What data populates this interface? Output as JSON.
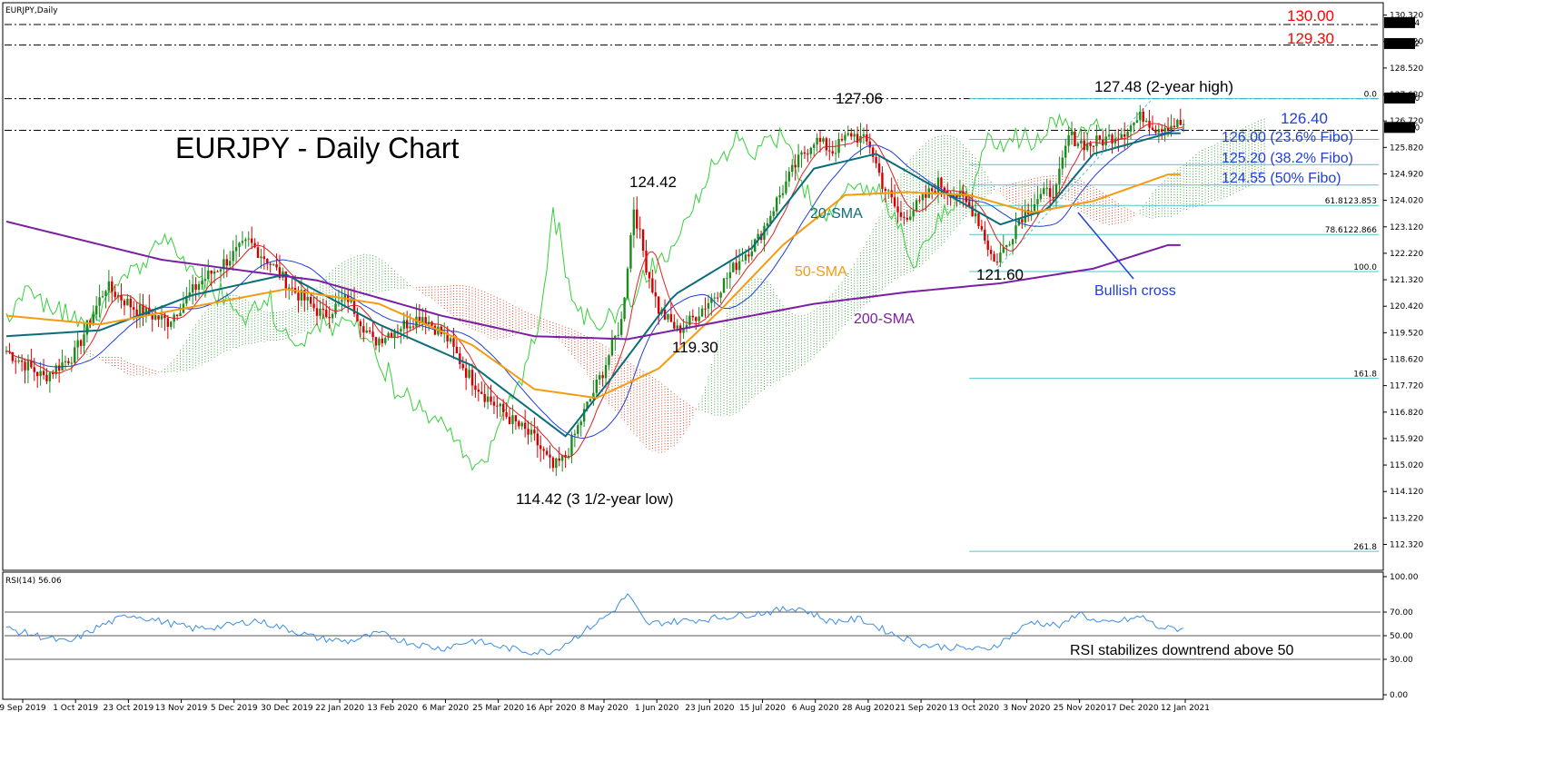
{
  "window": {
    "symbol_label": "EURJPY,Daily",
    "rsi_label": "RSI(14) 56.06"
  },
  "colors": {
    "bull_candle": "#1d8a1d",
    "bear_candle": "#d40000",
    "sma20": "#0a6e7a",
    "sma50": "#f39c12",
    "sma200": "#7b1fa2",
    "tenkan": "#e02020",
    "kijun": "#1f3fd6",
    "chikou": "#35d03a",
    "cloud_bull": "#3aa03a",
    "cloud_bear": "#d44020",
    "fibo": "#4ec6cf",
    "rsi_line": "#3a8ee6",
    "level_red": "#ff0000",
    "level_blue": "#1f3fd6"
  },
  "chart_data": {
    "type": "candlestick",
    "title": "EURJPY - Daily Chart",
    "x_ticks": [
      "9 Sep 2019",
      "1 Oct 2019",
      "23 Oct 2019",
      "13 Nov 2019",
      "5 Dec 2019",
      "30 Dec 2019",
      "22 Jan 2020",
      "13 Feb 2020",
      "6 Mar 2020",
      "25 Mar 2020",
      "16 Apr 2020",
      "8 May 2020",
      "1 Jun 2020",
      "23 Jun 2020",
      "15 Jul 2020",
      "6 Aug 2020",
      "28 Aug 2020",
      "21 Sep 2020",
      "13 Oct 2020",
      "3 Nov 2020",
      "25 Nov 2020",
      "17 Dec 2020",
      "12 Jan 2021"
    ],
    "price_axis": {
      "ylim": [
        111.44,
        130.74
      ],
      "ticks": [
        "130.320",
        "129.420",
        "128.520",
        "127.620",
        "126.720",
        "125.820",
        "124.920",
        "124.020",
        "123.120",
        "122.220",
        "121.320",
        "120.420",
        "119.520",
        "118.620",
        "117.720",
        "116.820",
        "115.920",
        "115.020",
        "114.120",
        "113.220",
        "112.320"
      ],
      "current_price_labels": [
        "130.064",
        "129.352",
        "127.500",
        "126.500"
      ]
    },
    "close_path": [
      [
        0,
        118.9
      ],
      [
        12,
        118.0
      ],
      [
        22,
        118.8
      ],
      [
        32,
        121.1
      ],
      [
        42,
        120.3
      ],
      [
        52,
        119.9
      ],
      [
        62,
        121.2
      ],
      [
        70,
        121.9
      ],
      [
        78,
        122.6
      ],
      [
        84,
        122.0
      ],
      [
        92,
        121.0
      ],
      [
        102,
        120.1
      ],
      [
        110,
        120.7
      ],
      [
        118,
        119.2
      ],
      [
        126,
        119.7
      ],
      [
        134,
        120.1
      ],
      [
        142,
        119.3
      ],
      [
        148,
        118.2
      ],
      [
        154,
        117.4
      ],
      [
        162,
        116.6
      ],
      [
        170,
        115.9
      ],
      [
        176,
        114.9
      ],
      [
        180,
        115.3
      ],
      [
        186,
        116.8
      ],
      [
        192,
        118.2
      ],
      [
        198,
        119.9
      ],
      [
        202,
        123.8
      ],
      [
        206,
        121.8
      ],
      [
        210,
        120.3
      ],
      [
        216,
        119.6
      ],
      [
        220,
        119.9
      ],
      [
        228,
        120.8
      ],
      [
        236,
        122.0
      ],
      [
        242,
        122.7
      ],
      [
        248,
        124.0
      ],
      [
        254,
        125.2
      ],
      [
        260,
        126.1
      ],
      [
        266,
        125.7
      ],
      [
        272,
        126.3
      ],
      [
        278,
        125.9
      ],
      [
        282,
        124.6
      ],
      [
        288,
        123.4
      ],
      [
        294,
        123.9
      ],
      [
        300,
        124.6
      ],
      [
        306,
        124.2
      ],
      [
        312,
        123.6
      ],
      [
        318,
        121.9
      ],
      [
        322,
        122.5
      ],
      [
        326,
        123.4
      ],
      [
        332,
        124.1
      ],
      [
        338,
        124.4
      ],
      [
        342,
        126.2
      ],
      [
        348,
        125.9
      ],
      [
        354,
        126.1
      ],
      [
        360,
        126.4
      ],
      [
        366,
        126.9
      ],
      [
        370,
        126.5
      ],
      [
        374,
        126.6
      ]
    ],
    "series": [
      {
        "name": "20-SMA",
        "values": [
          [
            0,
            119.4
          ],
          [
            30,
            119.6
          ],
          [
            60,
            120.8
          ],
          [
            90,
            121.5
          ],
          [
            120,
            119.8
          ],
          [
            150,
            118.4
          ],
          [
            180,
            116.0
          ],
          [
            195,
            118.0
          ],
          [
            215,
            120.8
          ],
          [
            240,
            122.4
          ],
          [
            260,
            125.1
          ],
          [
            280,
            125.6
          ],
          [
            300,
            124.4
          ],
          [
            320,
            123.2
          ],
          [
            335,
            123.7
          ],
          [
            350,
            125.6
          ],
          [
            374,
            126.3
          ]
        ]
      },
      {
        "name": "50-SMA",
        "values": [
          [
            0,
            120.1
          ],
          [
            30,
            119.8
          ],
          [
            60,
            120.4
          ],
          [
            90,
            121.0
          ],
          [
            120,
            120.5
          ],
          [
            150,
            119.1
          ],
          [
            170,
            117.6
          ],
          [
            190,
            117.3
          ],
          [
            210,
            118.3
          ],
          [
            230,
            120.3
          ],
          [
            250,
            122.5
          ],
          [
            270,
            124.2
          ],
          [
            290,
            124.3
          ],
          [
            310,
            124.2
          ],
          [
            330,
            123.6
          ],
          [
            350,
            124.0
          ],
          [
            374,
            124.9
          ]
        ]
      },
      {
        "name": "200-SMA",
        "values": [
          [
            0,
            123.3
          ],
          [
            50,
            122.0
          ],
          [
            100,
            121.3
          ],
          [
            140,
            120.1
          ],
          [
            170,
            119.4
          ],
          [
            200,
            119.3
          ],
          [
            230,
            119.9
          ],
          [
            260,
            120.5
          ],
          [
            290,
            120.9
          ],
          [
            320,
            121.2
          ],
          [
            350,
            121.7
          ],
          [
            374,
            122.5
          ]
        ]
      }
    ],
    "levels": [
      {
        "value": 130.0,
        "label": "130.00"
      },
      {
        "value": 129.3,
        "label": "129.30"
      },
      {
        "value": 127.48,
        "label": ""
      },
      {
        "value": 126.4,
        "label": "126.40"
      }
    ],
    "fibonacci": {
      "low": 121.6,
      "high": 127.48,
      "levels": [
        {
          "ratio": 0.0,
          "label": "0.0"
        },
        {
          "ratio": 0.236,
          "label": "126.00 (23.6% Fibo)"
        },
        {
          "ratio": 0.382,
          "label": "125.20 (38.2% Fibo)"
        },
        {
          "ratio": 0.5,
          "label": "124.55 (50% Fibo)"
        },
        {
          "ratio": 0.618,
          "label": "61.8123.853"
        },
        {
          "ratio": 0.786,
          "label": "78.6122.866"
        },
        {
          "ratio": 1.0,
          "label": "100.0"
        },
        {
          "ratio": 1.618,
          "label": "161.8"
        },
        {
          "ratio": 2.618,
          "label": "261.8"
        }
      ]
    },
    "annotations": {
      "high_2y": "127.48 (2-year high)",
      "high_aug": "127.06",
      "high_jun": "124.42",
      "low_nov": "121.60",
      "low_jun": "119.30",
      "low_3y": "114.42 (3 1/2-year low)",
      "sma20_label": "20-SMA",
      "sma50_label": "50-SMA",
      "sma200_label": "200-SMA",
      "bullish_cross": "Bullish cross"
    },
    "rsi": {
      "ylim": [
        0,
        100
      ],
      "ticks": [
        "100.00",
        "70.00",
        "50.00",
        "30.00",
        "0.00"
      ],
      "levels": [
        70,
        50,
        30
      ],
      "values": [
        [
          0,
          56
        ],
        [
          10,
          50
        ],
        [
          20,
          44
        ],
        [
          30,
          58
        ],
        [
          40,
          68
        ],
        [
          50,
          62
        ],
        [
          60,
          56
        ],
        [
          70,
          58
        ],
        [
          80,
          63
        ],
        [
          90,
          56
        ],
        [
          100,
          48
        ],
        [
          110,
          45
        ],
        [
          120,
          52
        ],
        [
          130,
          44
        ],
        [
          140,
          39
        ],
        [
          150,
          46
        ],
        [
          160,
          40
        ],
        [
          170,
          36
        ],
        [
          176,
          37
        ],
        [
          185,
          52
        ],
        [
          195,
          70
        ],
        [
          200,
          85
        ],
        [
          206,
          60
        ],
        [
          215,
          62
        ],
        [
          225,
          64
        ],
        [
          235,
          67
        ],
        [
          245,
          70
        ],
        [
          255,
          74
        ],
        [
          265,
          62
        ],
        [
          275,
          64
        ],
        [
          285,
          52
        ],
        [
          295,
          42
        ],
        [
          305,
          40
        ],
        [
          315,
          38
        ],
        [
          320,
          44
        ],
        [
          330,
          62
        ],
        [
          340,
          58
        ],
        [
          345,
          70
        ],
        [
          352,
          60
        ],
        [
          360,
          63
        ],
        [
          366,
          66
        ],
        [
          370,
          58
        ],
        [
          374,
          56
        ]
      ],
      "note": "RSI stabilizes downtrend above 50"
    }
  }
}
